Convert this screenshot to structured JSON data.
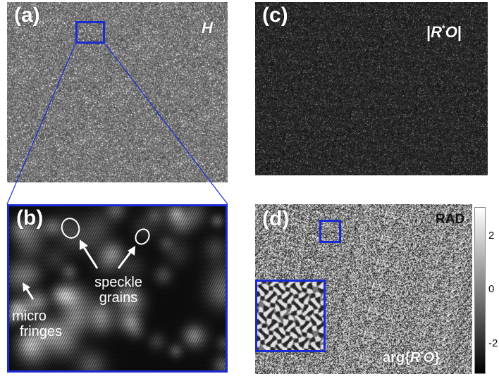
{
  "panels": {
    "a": {
      "letter": "(a)",
      "tag": "H"
    },
    "b": {
      "letter": "(b)",
      "annotations": {
        "speckle_line1": "speckle",
        "speckle_line2": "grains",
        "micro_line1": "micro",
        "micro_line2": "fringes"
      }
    },
    "c": {
      "letter": "(c)",
      "tag_left": "|",
      "tag_R": "R",
      "tag_star": "*",
      "tag_O": "O",
      "tag_right": "|"
    },
    "d": {
      "letter": "(d)",
      "unit": "RAD",
      "tag_prefix": "arg{",
      "tag_R": "R",
      "tag_star": "*",
      "tag_O": "O",
      "tag_suffix": "}"
    }
  },
  "colorbar": {
    "tick_labels": [
      "2",
      "0",
      "-2"
    ],
    "max": 3.14,
    "min": -3.14
  },
  "colors": {
    "box_blue": "#1a2bd6",
    "connector_blue": "#1a2bd6"
  }
}
